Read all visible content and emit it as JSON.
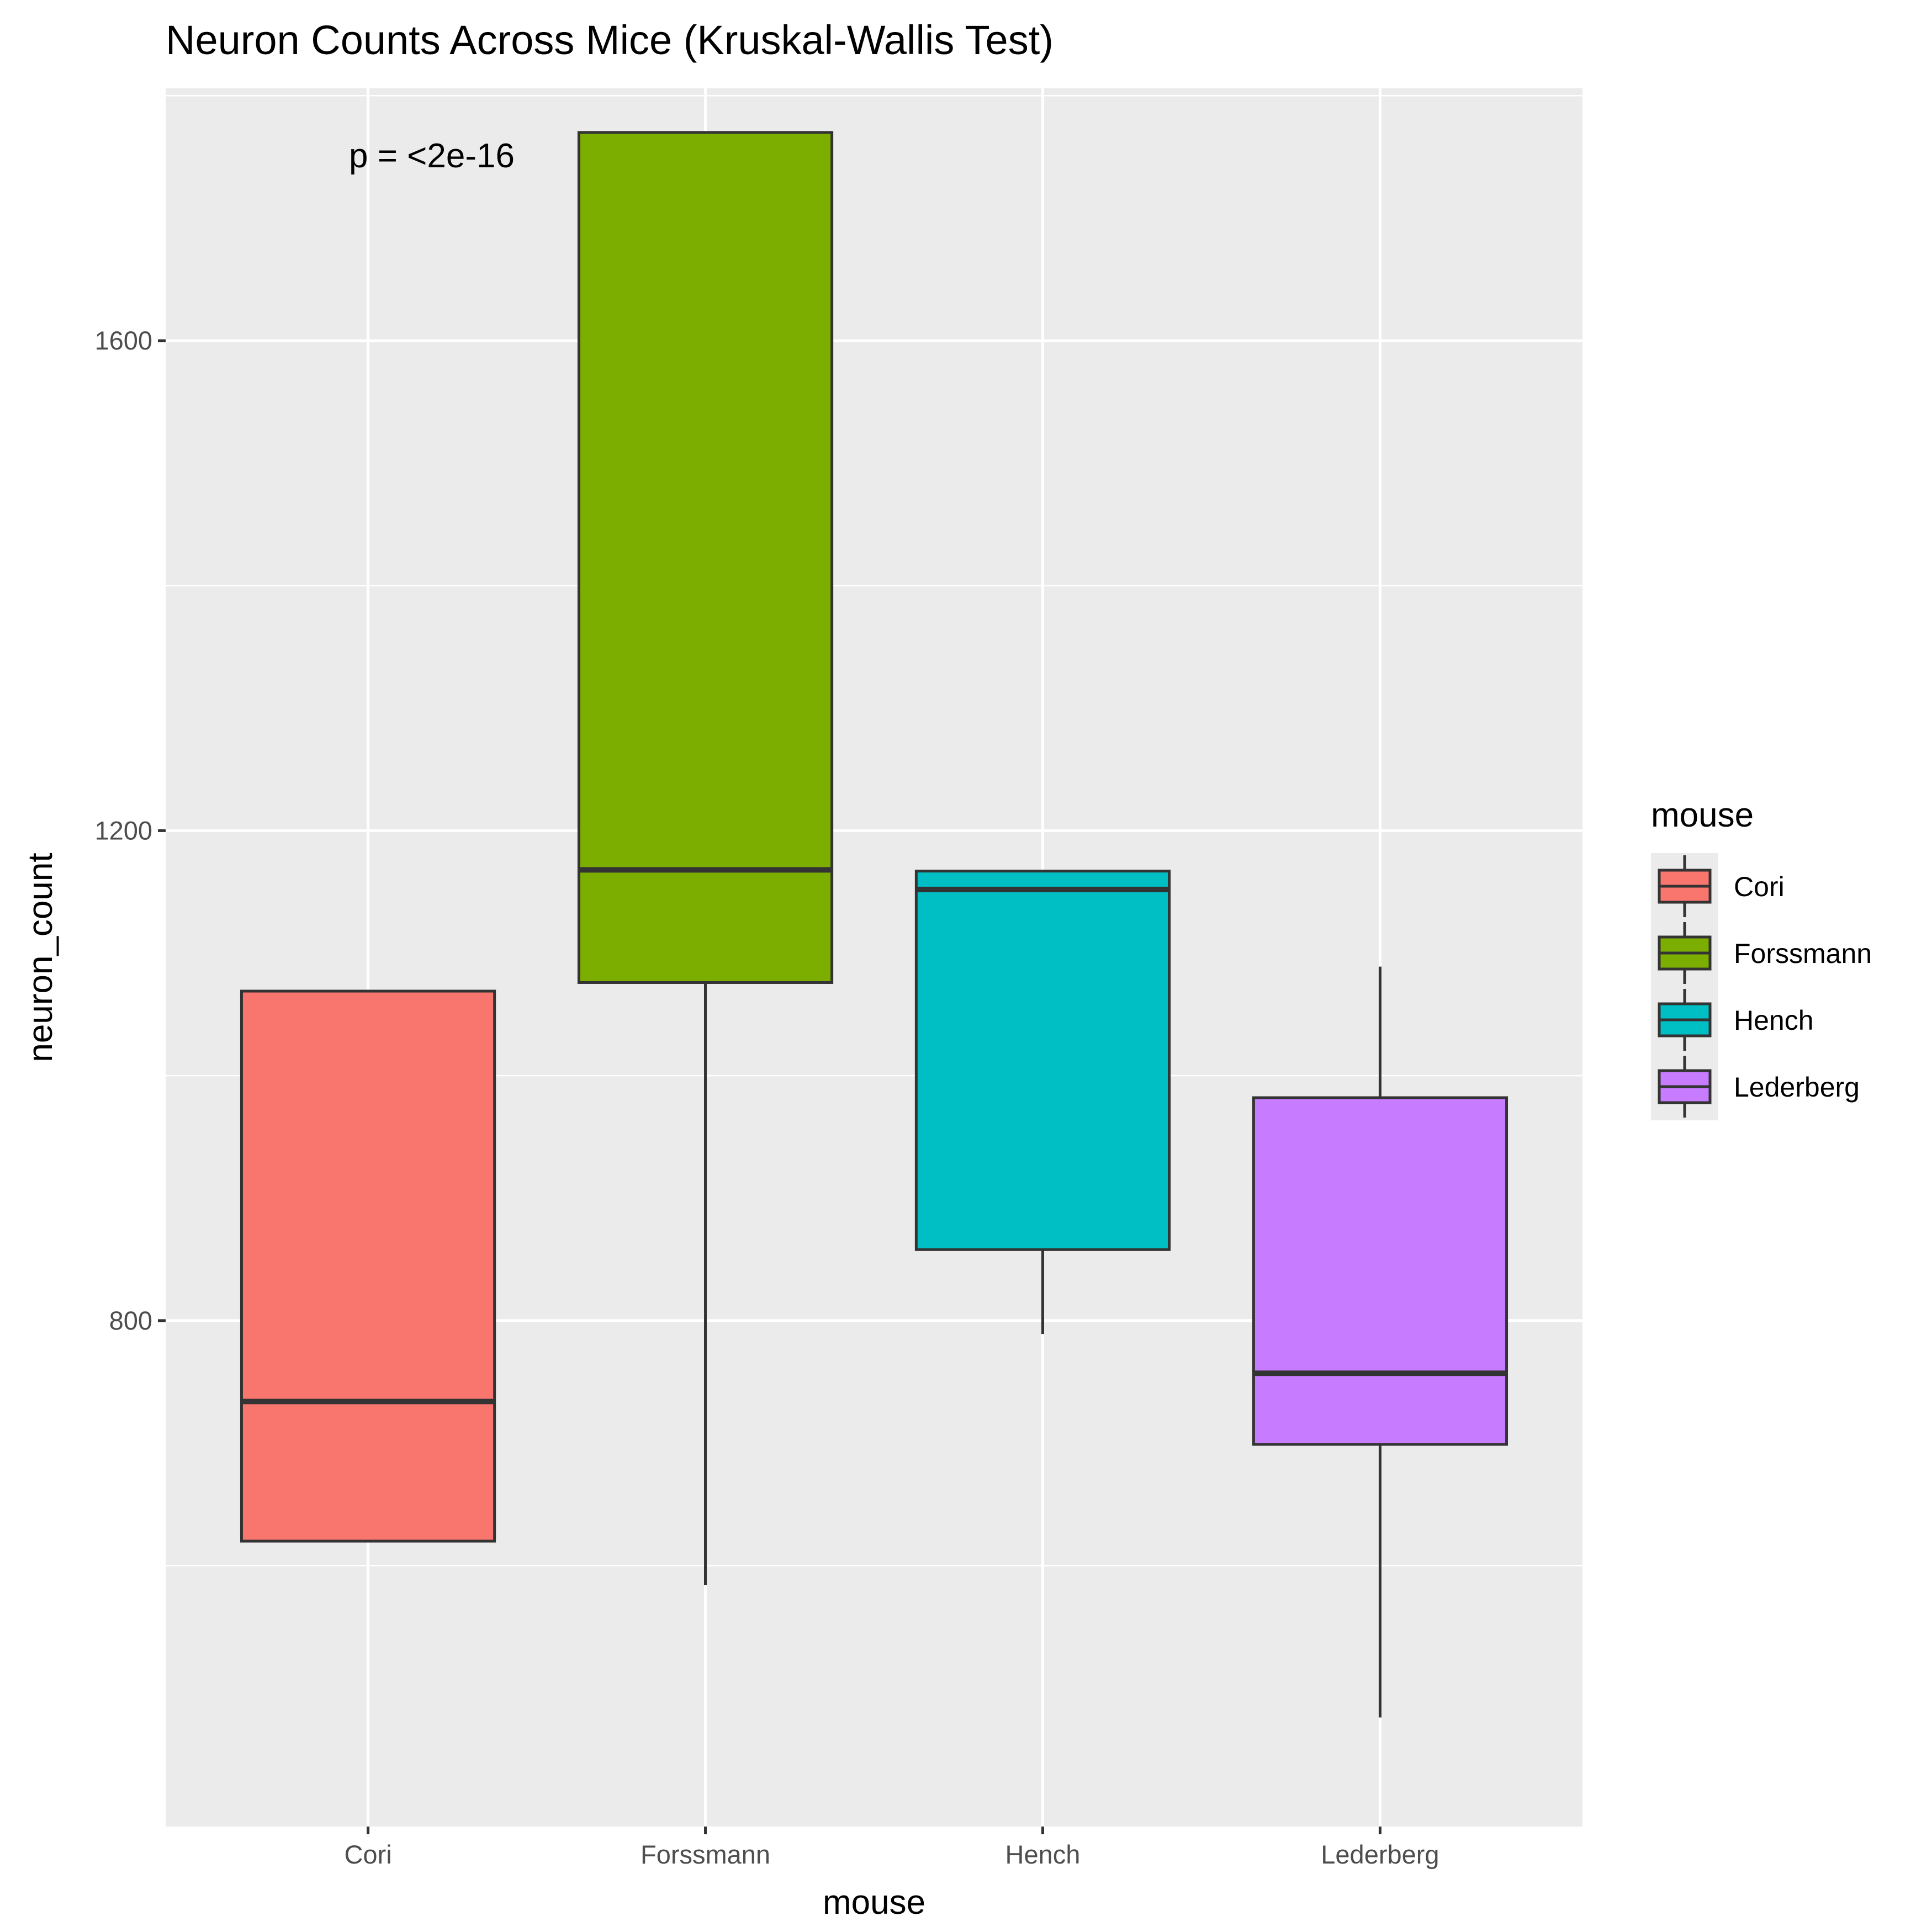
{
  "chart_data": {
    "type": "boxplot",
    "title": "Neuron Counts Across Mice (Kruskal-Wallis Test)",
    "xlabel": "mouse",
    "ylabel": "neuron_count",
    "categories": [
      "Cori",
      "Forssmann",
      "Hench",
      "Lederberg"
    ],
    "boxes": [
      {
        "name": "Cori",
        "whisker_low": 620,
        "q1": 620,
        "median": 734,
        "q3": 1069,
        "whisker_high": 1069,
        "color": "#F8766D"
      },
      {
        "name": "Forssmann",
        "whisker_low": 584,
        "q1": 1076,
        "median": 1168,
        "q3": 1770,
        "whisker_high": 1770,
        "color": "#7CAE00"
      },
      {
        "name": "Hench",
        "whisker_low": 789,
        "q1": 858,
        "median": 1152,
        "q3": 1167,
        "whisker_high": 1167,
        "color": "#00BFC4"
      },
      {
        "name": "Lederberg",
        "whisker_low": 476,
        "q1": 699,
        "median": 757,
        "q3": 982,
        "whisker_high": 1089,
        "color": "#C77CFF"
      }
    ],
    "y_ticks": [
      800,
      1200,
      1600
    ],
    "y_tick_labels": [
      "800",
      "1200",
      "1600"
    ],
    "ylim": [
      387,
      1806
    ],
    "grid": true,
    "annotation": "p = <2e-16",
    "legend": {
      "title": "mouse",
      "position": "right",
      "entries": [
        "Cori",
        "Forssmann",
        "Hench",
        "Lederberg"
      ]
    },
    "colors": {
      "panel_background": "#EBEBEB",
      "grid": "#FFFFFF",
      "box_outline": "#333333",
      "tick_label": "#4D4D4D"
    }
  }
}
